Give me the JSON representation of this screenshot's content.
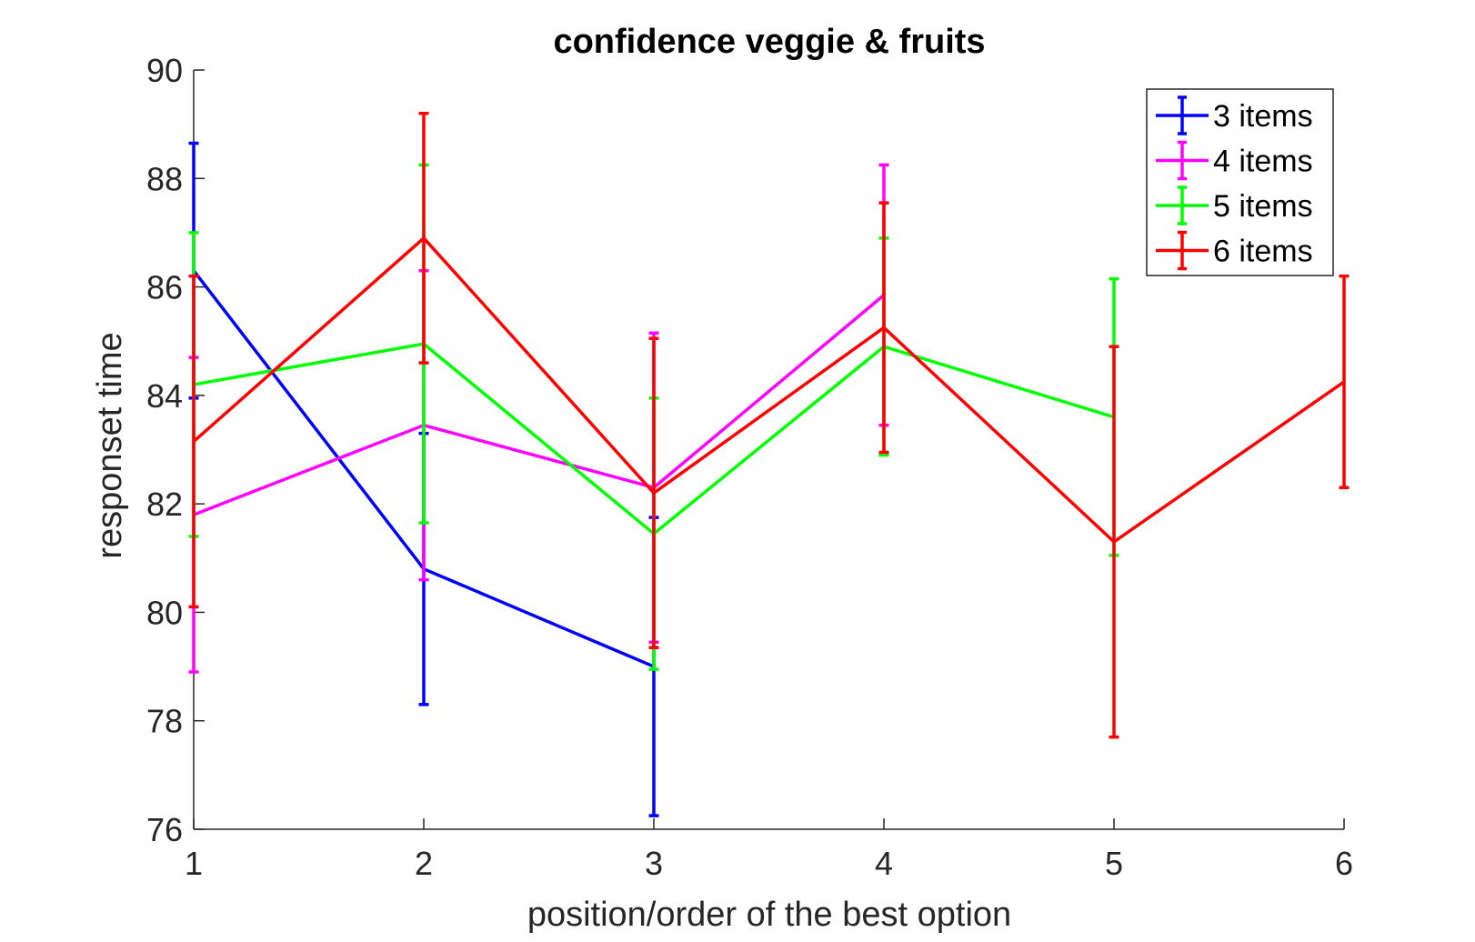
{
  "chart_data": {
    "type": "line",
    "title": "confidence veggie & fruits",
    "xlabel": "position/order of the best option",
    "ylabel": "responset time",
    "xlim": [
      1,
      6
    ],
    "ylim": [
      76,
      90
    ],
    "xticks": [
      1,
      2,
      3,
      4,
      5,
      6
    ],
    "yticks": [
      76,
      78,
      80,
      82,
      84,
      86,
      88,
      90
    ],
    "grid": false,
    "legend_position": "top-right",
    "series": [
      {
        "name": "3 items",
        "color": "#0000ff",
        "x": [
          1,
          2,
          3
        ],
        "y": [
          86.3,
          80.8,
          79.0
        ],
        "err": [
          2.35,
          2.5,
          2.75
        ]
      },
      {
        "name": "4 items",
        "color": "#ff00ff",
        "x": [
          1,
          2,
          3,
          4
        ],
        "y": [
          81.8,
          83.45,
          82.3,
          85.85
        ],
        "err": [
          2.9,
          2.85,
          2.85,
          2.4
        ]
      },
      {
        "name": "5 items",
        "color": "#00ff00",
        "x": [
          1,
          2,
          3,
          4,
          5
        ],
        "y": [
          84.2,
          84.95,
          81.45,
          84.9,
          83.6
        ],
        "err": [
          2.8,
          3.3,
          2.5,
          2.0,
          2.55
        ]
      },
      {
        "name": "6 items",
        "color": "#ff0000",
        "x": [
          1,
          2,
          3,
          4,
          5,
          6
        ],
        "y": [
          83.15,
          86.9,
          82.2,
          85.25,
          81.3,
          84.25
        ],
        "err": [
          3.05,
          2.3,
          2.85,
          2.3,
          3.6,
          1.95
        ]
      }
    ]
  }
}
